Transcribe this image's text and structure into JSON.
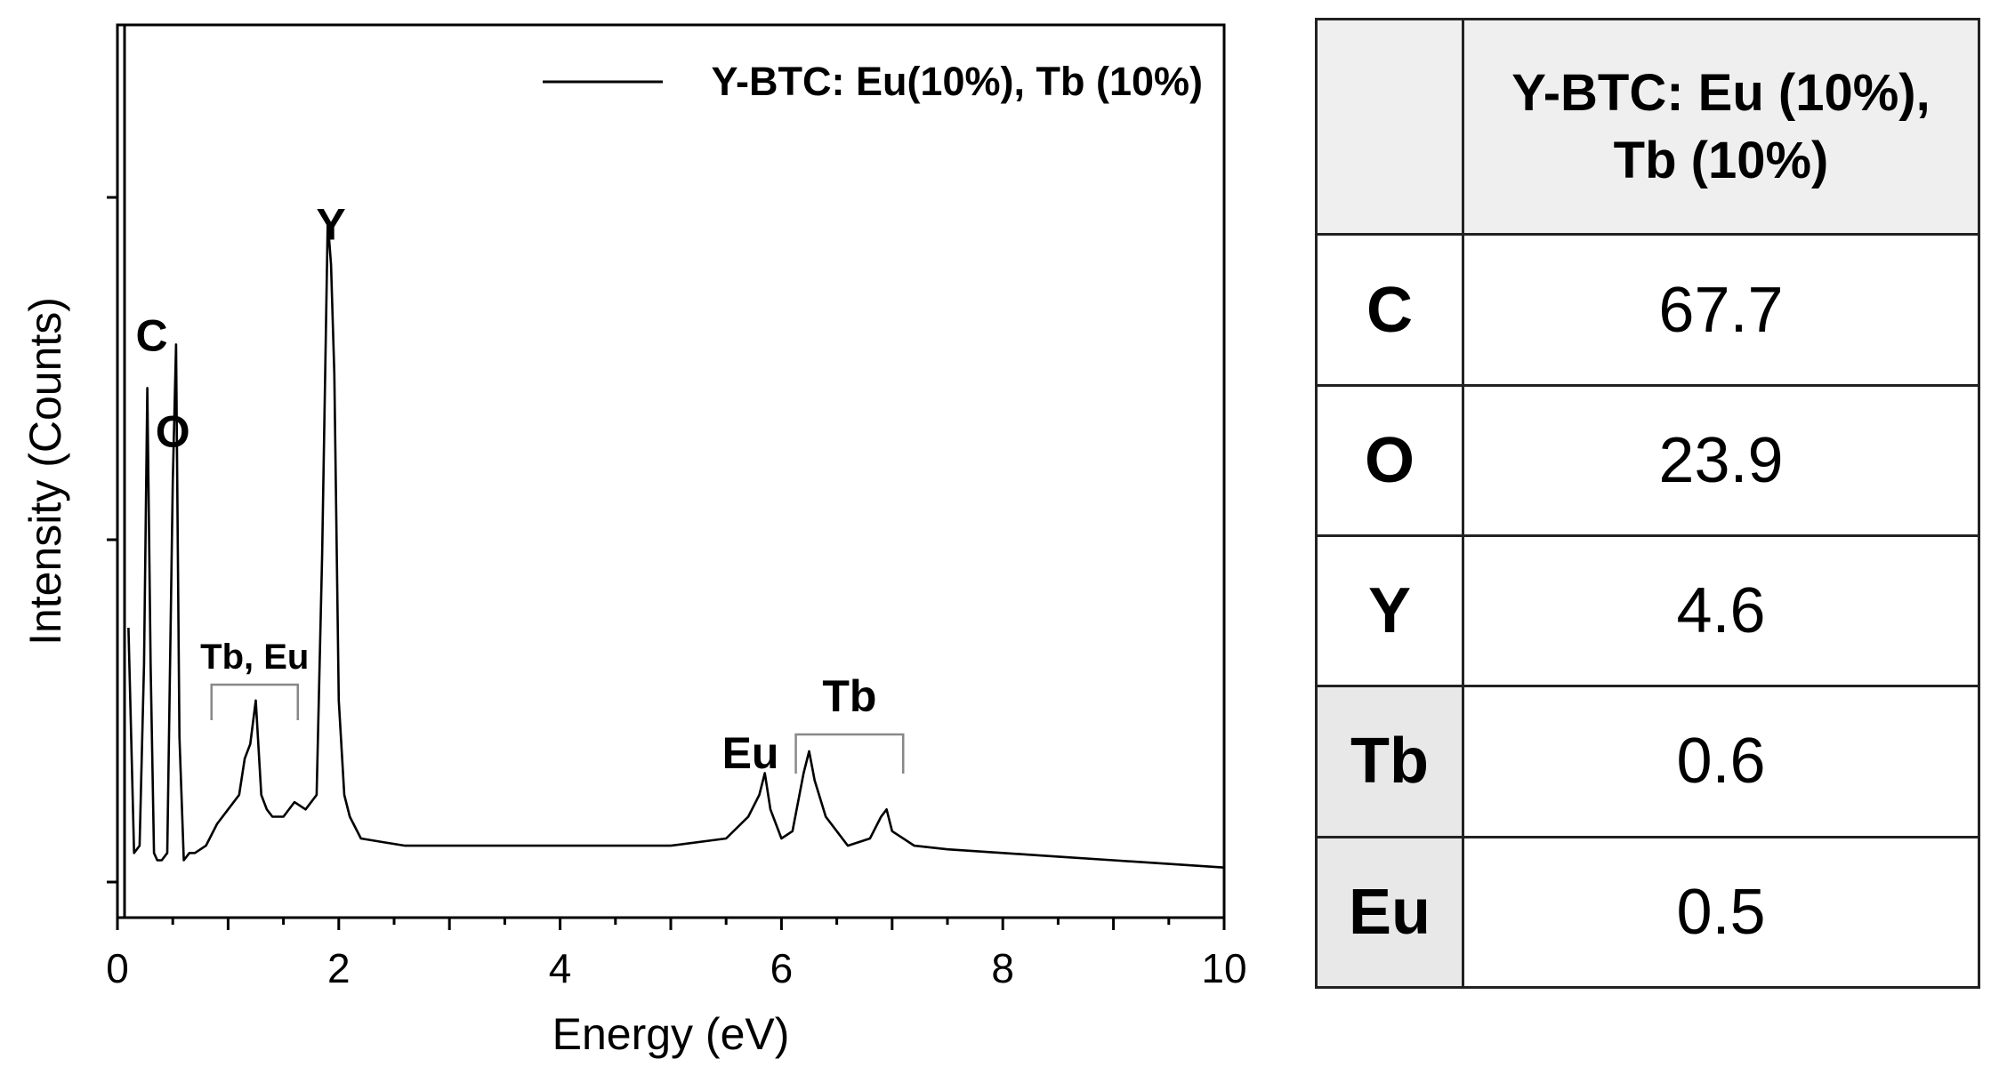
{
  "chart_data": {
    "type": "line",
    "xlabel": "Energy (eV)",
    "ylabel": "Intensity (Counts)",
    "xlim": [
      0,
      10
    ],
    "ylim": [
      0,
      100
    ],
    "xticks": [
      "0",
      "2",
      "4",
      "6",
      "8",
      "10"
    ],
    "y_scale_labels": "none",
    "grid": false,
    "legend_position": "top-right",
    "series": [
      {
        "name": "Y-BTC: Eu(10%), Tb (10%)",
        "color": "#000000",
        "x": [
          0.1,
          0.15,
          0.2,
          0.24,
          0.27,
          0.3,
          0.33,
          0.36,
          0.4,
          0.45,
          0.5,
          0.53,
          0.56,
          0.6,
          0.65,
          0.7,
          0.8,
          0.9,
          1.0,
          1.1,
          1.15,
          1.2,
          1.25,
          1.3,
          1.35,
          1.4,
          1.5,
          1.6,
          1.7,
          1.8,
          1.85,
          1.9,
          1.93,
          1.96,
          2.0,
          2.05,
          2.1,
          2.2,
          2.4,
          2.6,
          3.0,
          3.5,
          4.0,
          4.5,
          5.0,
          5.5,
          5.7,
          5.8,
          5.85,
          5.9,
          6.0,
          6.1,
          6.2,
          6.25,
          6.3,
          6.4,
          6.5,
          6.6,
          6.8,
          6.9,
          6.95,
          7.0,
          7.2,
          7.5,
          8.0,
          8.5,
          9.0,
          9.5,
          10.0
        ],
        "y": [
          35,
          4,
          5,
          30,
          68,
          30,
          4,
          3,
          3,
          4,
          55,
          74,
          20,
          3,
          4,
          4,
          5,
          8,
          10,
          12,
          17,
          19,
          25,
          12,
          10,
          9,
          9,
          11,
          10,
          12,
          45,
          91,
          85,
          70,
          25,
          12,
          9,
          6,
          5.5,
          5,
          5,
          5,
          5,
          5,
          5,
          6,
          9,
          12,
          15,
          10,
          6,
          7,
          15,
          18,
          14,
          9,
          7,
          5,
          6,
          9,
          10,
          7,
          5,
          4.5,
          4,
          3.5,
          3,
          2.5,
          2
        ]
      }
    ],
    "annotations": [
      {
        "text": "C",
        "x": 0.27
      },
      {
        "text": "O",
        "x": 0.5
      },
      {
        "text": "Y",
        "x": 1.93
      },
      {
        "text": "Tb, Eu",
        "x_range": [
          0.85,
          1.63
        ]
      },
      {
        "text": "Eu",
        "x": 5.8
      },
      {
        "text": "Tb",
        "x_range": [
          6.13,
          7.1
        ]
      }
    ]
  },
  "table": {
    "header": [
      "",
      "Y-BTC: Eu (10%),",
      "Tb (10%)"
    ],
    "rows": [
      {
        "element": "C",
        "value": "67.7"
      },
      {
        "element": "O",
        "value": "23.9"
      },
      {
        "element": "Y",
        "value": "4.6"
      },
      {
        "element": "Tb",
        "value": "0.6"
      },
      {
        "element": "Eu",
        "value": "0.5"
      }
    ],
    "shade_color": "#e8e8e8"
  }
}
